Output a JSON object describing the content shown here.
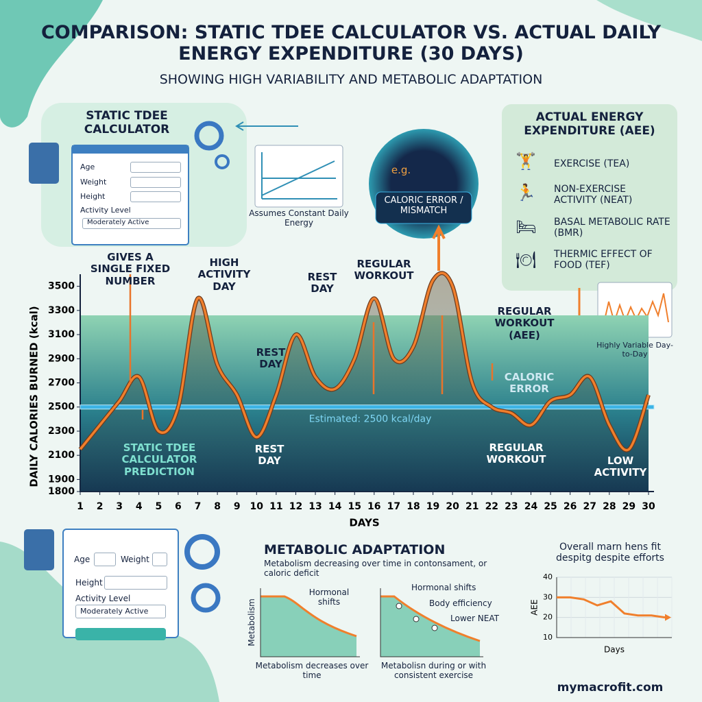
{
  "header": {
    "title": "COMPARISON: STATIC TDEE CALCULATOR VS. ACTUAL DAILY ENERGY EXPENDITURE (30 DAYS)",
    "subtitle": "SHOWING HIGH VARIABILITY AND METABOLIC ADAPTATION"
  },
  "static_panel": {
    "title": "STATIC TDEE CALCULATOR",
    "fields": [
      "Age",
      "Weight",
      "Height",
      "Activity Level"
    ],
    "selection": "Moderately Active",
    "assumption": "Assumes Constant Daily Energy"
  },
  "gauge": {
    "example": "e.g.",
    "label": "CALORIC ERROR / MISMATCH"
  },
  "aee_panel": {
    "title": "ACTUAL ENERGY EXPENDITURE (AEE)",
    "items": [
      "EXERCISE (TEA)",
      "NON-EXERCISE ACTIVITY (NEAT)",
      "BASAL METABOLIC RATE (BMR)",
      "THERMIC EFFECT OF FOOD (TEF)"
    ],
    "variability": "Highly Variable Day-to-Day"
  },
  "chart_data": [
    {
      "type": "line",
      "x_label": "DAYS",
      "y_label": "DAILY CALORIES BURNED (kcal)",
      "x": [
        1,
        2,
        3,
        4,
        5,
        6,
        7,
        8,
        9,
        10,
        11,
        12,
        13,
        14,
        15,
        16,
        17,
        18,
        19,
        20,
        21,
        22,
        23,
        24,
        25,
        26,
        27,
        28,
        29,
        30
      ],
      "values": [
        2150,
        2350,
        2550,
        2750,
        2300,
        2500,
        3400,
        2850,
        2600,
        2250,
        2600,
        3100,
        2750,
        2650,
        2900,
        3400,
        2900,
        3000,
        3550,
        3500,
        2700,
        2500,
        2450,
        2350,
        2550,
        2600,
        2750,
        2350,
        2150,
        2600
      ],
      "color": "#f07f2c",
      "xlim": [
        1,
        30
      ],
      "xticks": [
        1,
        2,
        3,
        4,
        5,
        6,
        7,
        8,
        9,
        10,
        11,
        12,
        13,
        14,
        15,
        16,
        17,
        18,
        19,
        20,
        21,
        22,
        23,
        24,
        25,
        26,
        27,
        28,
        29,
        30
      ],
      "ylim": [
        1800,
        3600
      ],
      "yticks": [
        1800,
        1900,
        2100,
        2300,
        2500,
        2700,
        2900,
        3100,
        3300,
        3500
      ],
      "reference_line": {
        "value": 2500,
        "label": "Estimated: 2500 kcal/day",
        "color": "#3cb4e6"
      },
      "annotations": [
        "GIVES A SINGLE FIXED NUMBER",
        "HIGH ACTIVITY DAY",
        "REST DAY",
        "REST DAY",
        "REGULAR WORKOUT",
        "REGULAR WORKOUT (AEE)",
        "CALORIC ERROR",
        "STATIC TDEE CALCULATOR PREDICTION",
        "REST DAY",
        "REGULAR WORKOUT",
        "LOW ACTIVITY"
      ]
    },
    {
      "type": "line",
      "title": "Overall marn hens fit despitg despite efforts",
      "y_label": "AEE",
      "x_label": "Days",
      "categories": [
        null,
        null,
        null,
        null,
        null,
        null,
        null,
        null,
        null
      ],
      "values": [
        30,
        30,
        29,
        26,
        28,
        22,
        21,
        21,
        20
      ],
      "color": "#f07f2c",
      "ylim": [
        10,
        40
      ],
      "yticks": [
        10,
        20,
        30,
        40
      ],
      "grid": true
    }
  ],
  "bottom_form": {
    "fields": [
      "Age",
      "Weight",
      "Height",
      "Activity Level"
    ],
    "selection": "Moderately Active"
  },
  "adaptation": {
    "title": "METABOLIC ADAPTATION",
    "subtitle": "Metabolism decreasing over time in contonsament, or caloric deficit",
    "panels": [
      {
        "y_label": "Metabolism",
        "notes": [
          "Hormonal shifts"
        ],
        "caption": "Metabolism decreases over time"
      },
      {
        "notes": [
          "Hormonal shifts",
          "Body efficiency",
          "Lower NEAT"
        ],
        "caption": "Metabolisn during or with consistent exercise"
      }
    ]
  },
  "footer": "mymacrofit.com"
}
